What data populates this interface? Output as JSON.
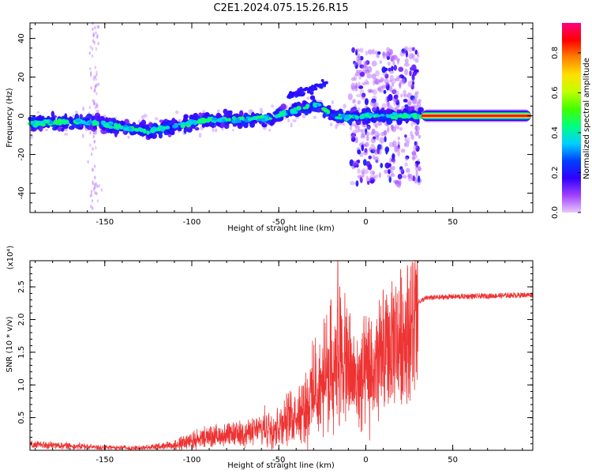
{
  "title": "C2E1.2024.075.15.26.R15",
  "chart_data": [
    {
      "type": "heatmap",
      "name": "spectrogram",
      "xlabel": "Height of straight line (km)",
      "ylabel": "Frequency (Hz)",
      "xlim": [
        -193,
        96
      ],
      "ylim": [
        -50,
        48
      ],
      "xticks": [
        -150,
        -100,
        -50,
        0,
        50
      ],
      "yticks": [
        -40,
        -20,
        0,
        20,
        40
      ],
      "colorbar": {
        "label": "Normalized spectral amplitude",
        "range": [
          0,
          0.95
        ],
        "ticks": [
          "0.0",
          "0.2",
          "0.4",
          "0.6",
          "0.8"
        ],
        "tick_values": [
          0.0,
          0.2,
          0.4,
          0.6,
          0.8
        ],
        "colors": [
          "#e8c8f8",
          "#a040ff",
          "#3000ff",
          "#0040ff",
          "#00d0ff",
          "#00ff80",
          "#40ff00",
          "#c0ff00",
          "#ffe000",
          "#ff8000",
          "#ff0000",
          "#ff0080"
        ]
      },
      "ridge": [
        {
          "x": -193,
          "f": -4
        },
        {
          "x": -160,
          "f": -3
        },
        {
          "x": -140,
          "f": -6
        },
        {
          "x": -125,
          "f": -8
        },
        {
          "x": -110,
          "f": -5
        },
        {
          "x": -90,
          "f": -2
        },
        {
          "x": -70,
          "f": -2
        },
        {
          "x": -55,
          "f": -1
        },
        {
          "x": -40,
          "f": 3
        },
        {
          "x": -28,
          "f": 6
        },
        {
          "x": -18,
          "f": 0
        },
        {
          "x": -10,
          "f": -1
        },
        {
          "x": 0,
          "f": 0
        },
        {
          "x": 30,
          "f": 0
        }
      ],
      "steady_band": {
        "x_start": 32,
        "x_end": 95,
        "f": 0
      }
    },
    {
      "type": "line",
      "name": "snr",
      "xlabel": "Height of straight line (km)",
      "ylabel": "SNR (10 * v/v)",
      "y_multiplier": "(x10⁴)",
      "xlim": [
        -193,
        96
      ],
      "ylim": [
        0,
        2.9
      ],
      "xticks": [
        -150,
        -100,
        -50,
        0,
        50
      ],
      "yticks": [
        "0.5",
        "1.0",
        "1.5",
        "2.0",
        "2.5"
      ],
      "ytick_values": [
        0.5,
        1.0,
        1.5,
        2.0,
        2.5
      ],
      "color": "#ee3333",
      "envelope": [
        {
          "x": -193,
          "y": 0.1
        },
        {
          "x": -170,
          "y": 0.08
        },
        {
          "x": -150,
          "y": 0.05
        },
        {
          "x": -130,
          "y": 0.04
        },
        {
          "x": -110,
          "y": 0.1
        },
        {
          "x": -90,
          "y": 0.25
        },
        {
          "x": -70,
          "y": 0.3
        },
        {
          "x": -50,
          "y": 0.45
        },
        {
          "x": -35,
          "y": 0.8
        },
        {
          "x": -25,
          "y": 1.2
        },
        {
          "x": -15,
          "y": 1.7
        },
        {
          "x": -5,
          "y": 1.2
        },
        {
          "x": 5,
          "y": 1.4
        },
        {
          "x": 15,
          "y": 1.9
        },
        {
          "x": 25,
          "y": 2.2
        },
        {
          "x": 35,
          "y": 2.33
        },
        {
          "x": 50,
          "y": 2.35
        },
        {
          "x": 70,
          "y": 2.36
        },
        {
          "x": 96,
          "y": 2.38
        }
      ],
      "peaks": [
        {
          "x": -16,
          "y": 2.9
        },
        {
          "x": -15,
          "y": 2.5
        },
        {
          "x": 10,
          "y": 2.45
        },
        {
          "x": -20,
          "y": 2.3
        }
      ]
    }
  ]
}
